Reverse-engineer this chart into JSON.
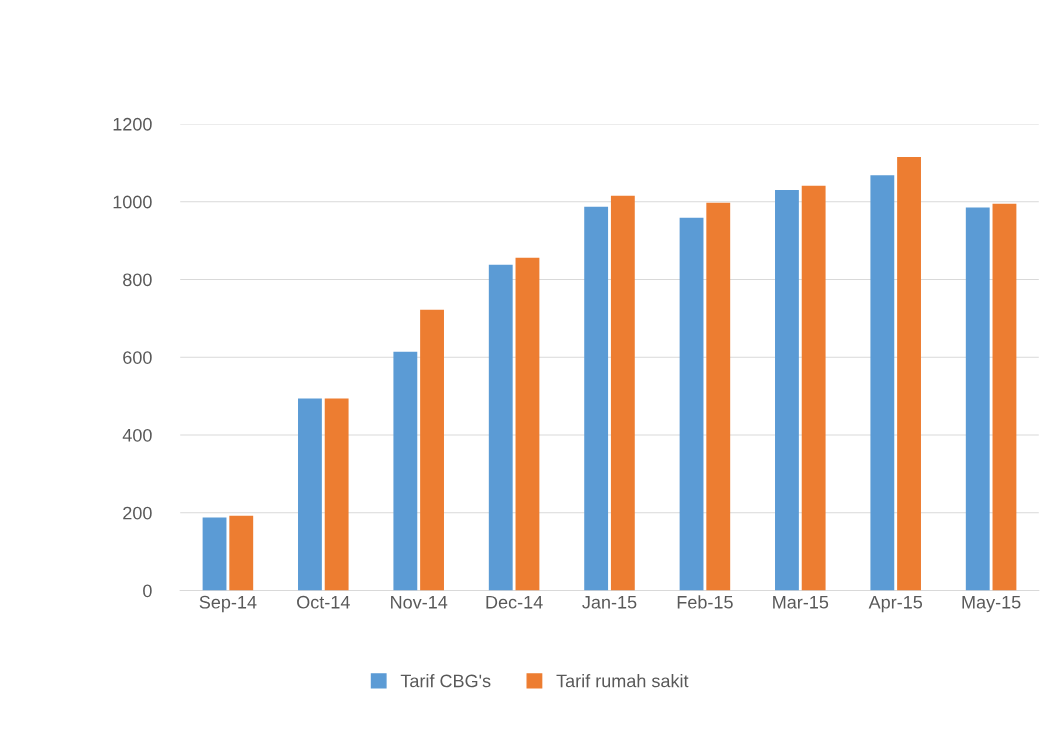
{
  "chart_data": {
    "type": "bar",
    "categories": [
      "Sep-14",
      "Oct-14",
      "Nov-14",
      "Dec-14",
      "Jan-15",
      "Feb-15",
      "Mar-15",
      "Apr-15",
      "May-15"
    ],
    "series": [
      {
        "name": "Tarif CBG's",
        "color": "#5b9bd5",
        "values": [
          188,
          494,
          614,
          838,
          987,
          959,
          1030,
          1068,
          985
        ]
      },
      {
        "name": "Tarif rumah sakit",
        "color": "#ed7d31",
        "values": [
          192,
          494,
          722,
          856,
          1015,
          997,
          1041,
          1115,
          995
        ]
      }
    ],
    "ylim": [
      0,
      1200
    ],
    "yticks": [
      0,
      200,
      400,
      600,
      800,
      1000,
      1200
    ],
    "grid": "y",
    "legend": "bottom"
  }
}
